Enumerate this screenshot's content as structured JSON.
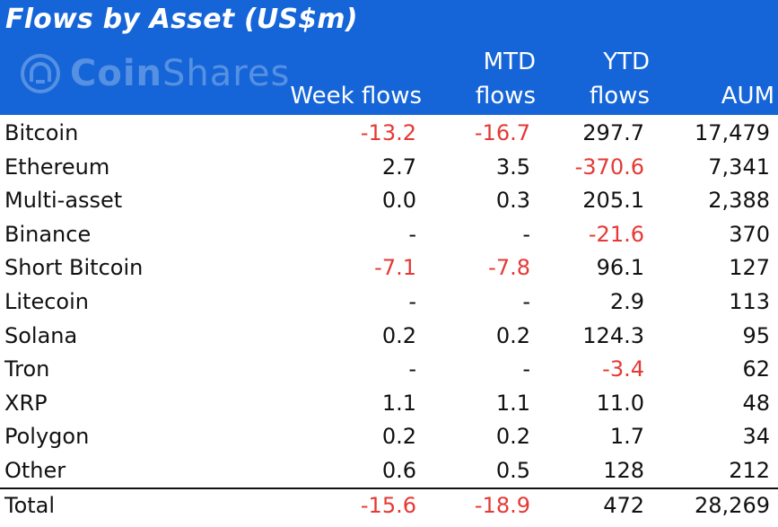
{
  "title": "Flows by Asset (US$m)",
  "logo": {
    "icon": "coinshares-logo-icon",
    "text_bold": "Coin",
    "text_light": "Shares"
  },
  "columns": {
    "week": [
      "Week flows"
    ],
    "mtd": [
      "MTD",
      "flows"
    ],
    "ytd": [
      "YTD",
      "flows"
    ],
    "aum": [
      "AUM"
    ]
  },
  "colors": {
    "header_bg": "#1565d8",
    "negative": "#e53935",
    "text": "#111111"
  },
  "rows": [
    {
      "name": "Bitcoin",
      "week": "-13.2",
      "mtd": "-16.7",
      "ytd": "297.7",
      "aum": "17,479"
    },
    {
      "name": "Ethereum",
      "week": "2.7",
      "mtd": "3.5",
      "ytd": "-370.6",
      "aum": "7,341"
    },
    {
      "name": "Multi-asset",
      "week": "0.0",
      "mtd": "0.3",
      "ytd": "205.1",
      "aum": "2,388"
    },
    {
      "name": "Binance",
      "week": "-",
      "mtd": "-",
      "ytd": "-21.6",
      "aum": "370"
    },
    {
      "name": "Short Bitcoin",
      "week": "-7.1",
      "mtd": "-7.8",
      "ytd": "96.1",
      "aum": "127"
    },
    {
      "name": "Litecoin",
      "week": "-",
      "mtd": "-",
      "ytd": "2.9",
      "aum": "113"
    },
    {
      "name": "Solana",
      "week": "0.2",
      "mtd": "0.2",
      "ytd": "124.3",
      "aum": "95"
    },
    {
      "name": "Tron",
      "week": "-",
      "mtd": "-",
      "ytd": "-3.4",
      "aum": "62"
    },
    {
      "name": "XRP",
      "week": "1.1",
      "mtd": "1.1",
      "ytd": "11.0",
      "aum": "48"
    },
    {
      "name": "Polygon",
      "week": "0.2",
      "mtd": "0.2",
      "ytd": "1.7",
      "aum": "34"
    },
    {
      "name": "Other",
      "week": "0.6",
      "mtd": "0.5",
      "ytd": "128",
      "aum": "212"
    }
  ],
  "total": {
    "name": "Total",
    "week": "-15.6",
    "mtd": "-18.9",
    "ytd": "472",
    "aum": "28,269"
  }
}
